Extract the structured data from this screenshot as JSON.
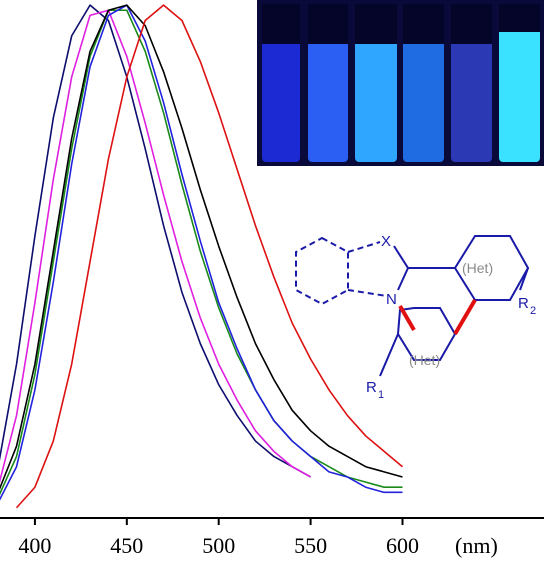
{
  "chart_data": {
    "type": "line",
    "xlim": [
      381,
      677
    ],
    "ylim": [
      0,
      1.01
    ],
    "xticks": [
      400,
      450,
      500,
      550,
      600
    ],
    "x_label": "(nm)",
    "series": [
      {
        "color": "#0d0d6e",
        "x": [
          380,
          390,
          400,
          410,
          420,
          430,
          440,
          450,
          460,
          470,
          480,
          490,
          500,
          510,
          520,
          530,
          540,
          550
        ],
        "values": [
          0.1,
          0.3,
          0.55,
          0.78,
          0.94,
          1.0,
          0.97,
          0.86,
          0.72,
          0.57,
          0.44,
          0.34,
          0.26,
          0.2,
          0.15,
          0.12,
          0.1,
          0.08
        ]
      },
      {
        "color": "#e020e0",
        "x": [
          380,
          390,
          400,
          410,
          420,
          430,
          440,
          450,
          460,
          470,
          480,
          490,
          500,
          510,
          520,
          530,
          540,
          550
        ],
        "values": [
          0.06,
          0.2,
          0.42,
          0.66,
          0.86,
          0.98,
          0.99,
          0.9,
          0.77,
          0.63,
          0.5,
          0.39,
          0.3,
          0.23,
          0.17,
          0.13,
          0.1,
          0.08
        ]
      },
      {
        "color": "#1a8a1a",
        "x": [
          380,
          390,
          400,
          410,
          420,
          430,
          440,
          450,
          460,
          470,
          480,
          490,
          500,
          510,
          520,
          530,
          540,
          550,
          560,
          570,
          580,
          590,
          600
        ],
        "values": [
          0.04,
          0.12,
          0.28,
          0.5,
          0.72,
          0.9,
          0.99,
          0.99,
          0.91,
          0.79,
          0.65,
          0.52,
          0.41,
          0.32,
          0.25,
          0.19,
          0.15,
          0.12,
          0.1,
          0.08,
          0.07,
          0.06,
          0.06
        ]
      },
      {
        "color": "#2222dd",
        "x": [
          380,
          390,
          400,
          410,
          420,
          430,
          440,
          450,
          460,
          470,
          480,
          490,
          500,
          510,
          520,
          530,
          540,
          550,
          560,
          570,
          580,
          590,
          600
        ],
        "values": [
          0.03,
          0.1,
          0.25,
          0.46,
          0.69,
          0.88,
          0.98,
          1.0,
          0.93,
          0.81,
          0.67,
          0.54,
          0.42,
          0.33,
          0.25,
          0.19,
          0.15,
          0.12,
          0.09,
          0.08,
          0.06,
          0.05,
          0.05
        ]
      },
      {
        "color": "#000000",
        "x": [
          380,
          390,
          400,
          410,
          420,
          430,
          440,
          450,
          460,
          470,
          480,
          490,
          500,
          510,
          520,
          530,
          540,
          550,
          560,
          570,
          580,
          590,
          600
        ],
        "values": [
          0.05,
          0.14,
          0.3,
          0.52,
          0.74,
          0.91,
          0.99,
          1.0,
          0.96,
          0.87,
          0.76,
          0.64,
          0.53,
          0.43,
          0.34,
          0.27,
          0.21,
          0.17,
          0.14,
          0.12,
          0.1,
          0.09,
          0.08
        ]
      },
      {
        "color": "#dd1111",
        "x": [
          390,
          400,
          410,
          420,
          430,
          440,
          450,
          460,
          470,
          480,
          490,
          500,
          510,
          520,
          530,
          540,
          550,
          560,
          570,
          580,
          590,
          600
        ],
        "values": [
          0.02,
          0.06,
          0.15,
          0.3,
          0.5,
          0.7,
          0.86,
          0.97,
          1.0,
          0.97,
          0.89,
          0.79,
          0.68,
          0.57,
          0.47,
          0.38,
          0.31,
          0.25,
          0.2,
          0.16,
          0.13,
          0.1
        ]
      }
    ],
    "annotations": [
      "X",
      "N",
      "(Het)",
      "(Het)",
      "R",
      "2",
      "R",
      "1"
    ]
  }
}
